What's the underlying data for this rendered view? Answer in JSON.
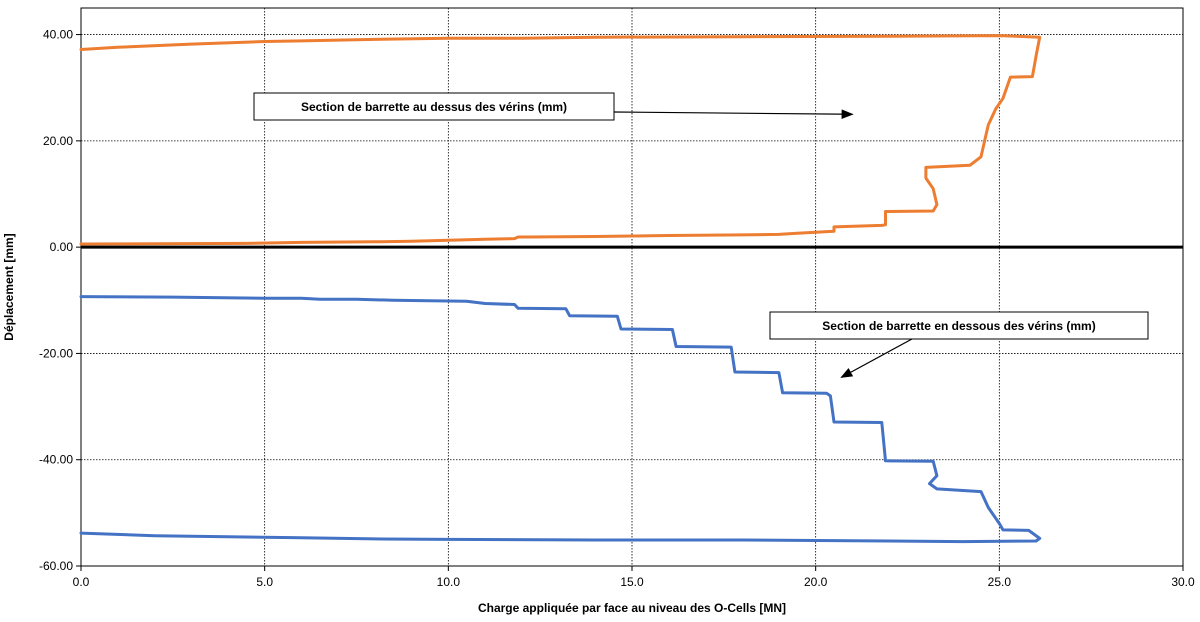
{
  "chart_data": {
    "type": "line",
    "xlabel": "Charge appliquée par face au niveau des O-Cells [MN]",
    "ylabel": "Déplacement [mm]",
    "xlim": [
      0,
      30
    ],
    "ylim": [
      -60,
      45
    ],
    "x_ticks": [
      0,
      5,
      10,
      15,
      20,
      25,
      30
    ],
    "x_tick_labels": [
      "0.0",
      "5.0",
      "10.0",
      "15.0",
      "20.0",
      "25.0",
      "30.0"
    ],
    "y_ticks": [
      -60,
      -40,
      -20,
      0,
      20,
      40
    ],
    "y_tick_labels": [
      "-60.00",
      "-40.00",
      "-20.00",
      "0.00",
      "20.00",
      "40.00"
    ],
    "grid": true,
    "legend": "none",
    "series": [
      {
        "color": "#ED7D31",
        "points": [
          [
            0,
            0.6
          ],
          [
            4.5,
            0.7
          ],
          [
            6,
            0.9
          ],
          [
            8,
            1.0
          ],
          [
            9,
            1.1
          ],
          [
            10,
            1.3
          ],
          [
            11,
            1.5
          ],
          [
            11.8,
            1.6
          ],
          [
            11.9,
            1.9
          ],
          [
            12.2,
            1.9
          ],
          [
            14,
            2.0
          ],
          [
            15,
            2.1
          ],
          [
            16,
            2.2
          ],
          [
            18,
            2.3
          ],
          [
            19,
            2.4
          ],
          [
            19.5,
            2.6
          ],
          [
            20.5,
            3.0
          ],
          [
            20.5,
            3.8
          ],
          [
            21.8,
            4.1
          ],
          [
            21.9,
            4.2
          ],
          [
            21.9,
            6.7
          ],
          [
            23.2,
            6.8
          ],
          [
            23.3,
            8.0
          ],
          [
            23.2,
            11.0
          ],
          [
            23.0,
            13.0
          ],
          [
            23.0,
            15.0
          ],
          [
            24.2,
            15.4
          ],
          [
            24.5,
            17.0
          ],
          [
            24.6,
            20.0
          ],
          [
            24.7,
            23.0
          ],
          [
            24.9,
            26.0
          ],
          [
            25.1,
            28.0
          ],
          [
            25.2,
            30.0
          ],
          [
            25.3,
            32.0
          ],
          [
            25.9,
            32.1
          ],
          [
            26.0,
            36.0
          ],
          [
            26.1,
            39.5
          ],
          [
            25.0,
            39.8
          ],
          [
            22.0,
            39.7
          ],
          [
            18.0,
            39.6
          ],
          [
            14.0,
            39.5
          ],
          [
            12.0,
            39.3
          ],
          [
            10.0,
            39.3
          ],
          [
            8.0,
            39.1
          ],
          [
            6.0,
            38.8
          ],
          [
            5.0,
            38.7
          ],
          [
            3.0,
            38.2
          ],
          [
            1.0,
            37.6
          ],
          [
            0,
            37.2
          ]
        ]
      },
      {
        "color": "#4472C4",
        "points": [
          [
            0,
            -9.3
          ],
          [
            2.5,
            -9.4
          ],
          [
            5,
            -9.6
          ],
          [
            6,
            -9.6
          ],
          [
            6.5,
            -9.8
          ],
          [
            7.5,
            -9.8
          ],
          [
            8.5,
            -10.0
          ],
          [
            10.5,
            -10.2
          ],
          [
            11,
            -10.6
          ],
          [
            11.8,
            -10.8
          ],
          [
            11.9,
            -11.5
          ],
          [
            13.2,
            -11.6
          ],
          [
            13.3,
            -12.9
          ],
          [
            14.6,
            -13.0
          ],
          [
            14.7,
            -15.4
          ],
          [
            16.1,
            -15.5
          ],
          [
            16.2,
            -18.7
          ],
          [
            17.7,
            -18.8
          ],
          [
            17.8,
            -23.5
          ],
          [
            19.0,
            -23.6
          ],
          [
            19.1,
            -27.4
          ],
          [
            20.3,
            -27.5
          ],
          [
            20.4,
            -28.0
          ],
          [
            20.5,
            -32.9
          ],
          [
            21.8,
            -33.0
          ],
          [
            21.9,
            -40.2
          ],
          [
            23.2,
            -40.3
          ],
          [
            23.3,
            -43.0
          ],
          [
            23.1,
            -44.5
          ],
          [
            23.3,
            -45.5
          ],
          [
            24.5,
            -46.0
          ],
          [
            24.7,
            -49.0
          ],
          [
            25.0,
            -52.0
          ],
          [
            25.1,
            -53.2
          ],
          [
            25.8,
            -53.3
          ],
          [
            26.1,
            -54.8
          ],
          [
            26.0,
            -55.3
          ],
          [
            24.0,
            -55.4
          ],
          [
            22.0,
            -55.3
          ],
          [
            20.0,
            -55.2
          ],
          [
            18.0,
            -55.1
          ],
          [
            14.0,
            -55.1
          ],
          [
            10.0,
            -55.0
          ],
          [
            8.0,
            -54.9
          ],
          [
            6.0,
            -54.7
          ],
          [
            4.0,
            -54.5
          ],
          [
            2.0,
            -54.3
          ],
          [
            0,
            -53.8
          ]
        ]
      }
    ],
    "annotations": [
      {
        "text": "Section de barrette au dessus des vérins (mm)",
        "arrow_to": [
          21,
          25
        ]
      },
      {
        "text": "Section de barrette en dessous des vérins (mm)",
        "arrow_to": [
          20.7,
          -24.5
        ]
      }
    ]
  }
}
